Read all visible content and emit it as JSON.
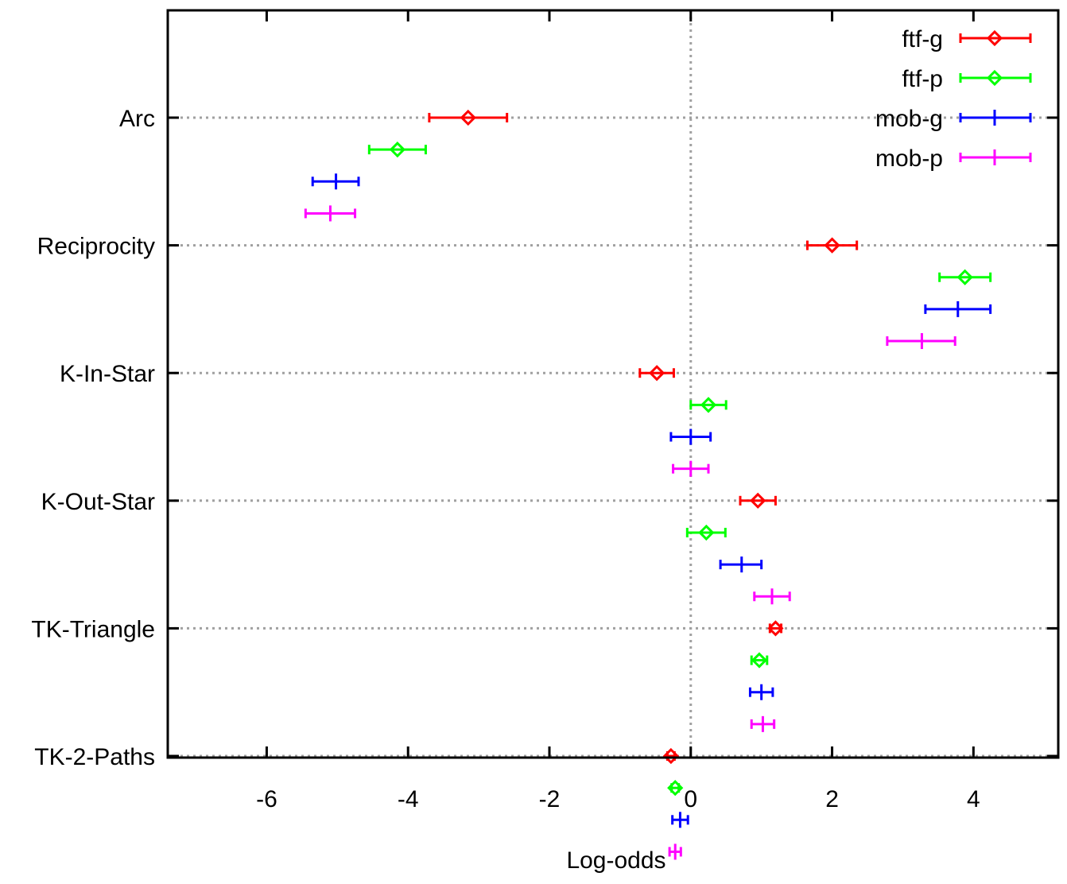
{
  "chart_data": {
    "type": "scatter",
    "title": "",
    "xlabel": "Log-odds",
    "ylabel": "",
    "xlim": [
      -7.4,
      5.2
    ],
    "x_ticks": [
      -6,
      -4,
      -2,
      0,
      2,
      4
    ],
    "x_tick_labels": [
      "-6",
      "-4",
      "-2",
      "0",
      "2",
      "4"
    ],
    "grid": true,
    "legend_position": "top-right",
    "categories": [
      "Arc",
      "Reciprocity",
      "K-In-Star",
      "K-Out-Star",
      "TK-Triangle",
      "TK-2-Paths"
    ],
    "series": [
      {
        "name": "ftf-g",
        "color": "#ff0000",
        "marker": "diamond",
        "points": [
          {
            "value": -3.15,
            "low": -3.7,
            "high": -2.6
          },
          {
            "value": 2.0,
            "low": 1.65,
            "high": 2.35
          },
          {
            "value": -0.48,
            "low": -0.72,
            "high": -0.24
          },
          {
            "value": 0.95,
            "low": 0.7,
            "high": 1.2
          },
          {
            "value": 1.2,
            "low": 1.12,
            "high": 1.28
          },
          {
            "value": -0.28,
            "low": -0.33,
            "high": -0.23
          }
        ]
      },
      {
        "name": "ftf-p",
        "color": "#00ff00",
        "marker": "diamond",
        "points": [
          {
            "value": -4.15,
            "low": -4.55,
            "high": -3.75
          },
          {
            "value": 3.88,
            "low": 3.52,
            "high": 4.24
          },
          {
            "value": 0.25,
            "low": 0.0,
            "high": 0.5
          },
          {
            "value": 0.22,
            "low": -0.05,
            "high": 0.49
          },
          {
            "value": 0.97,
            "low": 0.86,
            "high": 1.08
          },
          {
            "value": -0.22,
            "low": -0.27,
            "high": -0.17
          }
        ]
      },
      {
        "name": "mob-g",
        "color": "#0000ff",
        "marker": "plus",
        "points": [
          {
            "value": -5.02,
            "low": -5.35,
            "high": -4.7
          },
          {
            "value": 3.78,
            "low": 3.32,
            "high": 4.24
          },
          {
            "value": 0.0,
            "low": -0.28,
            "high": 0.28
          },
          {
            "value": 0.72,
            "low": 0.42,
            "high": 1.0
          },
          {
            "value": 1.0,
            "low": 0.84,
            "high": 1.16
          },
          {
            "value": -0.15,
            "low": -0.26,
            "high": -0.04
          }
        ]
      },
      {
        "name": "mob-p",
        "color": "#ff00ff",
        "marker": "plus",
        "points": [
          {
            "value": -5.1,
            "low": -5.45,
            "high": -4.75
          },
          {
            "value": 3.27,
            "low": 2.78,
            "high": 3.74
          },
          {
            "value": 0.0,
            "low": -0.25,
            "high": 0.25
          },
          {
            "value": 1.15,
            "low": 0.9,
            "high": 1.4
          },
          {
            "value": 1.02,
            "low": 0.86,
            "high": 1.18
          },
          {
            "value": -0.22,
            "low": -0.3,
            "high": -0.14
          }
        ]
      }
    ]
  }
}
